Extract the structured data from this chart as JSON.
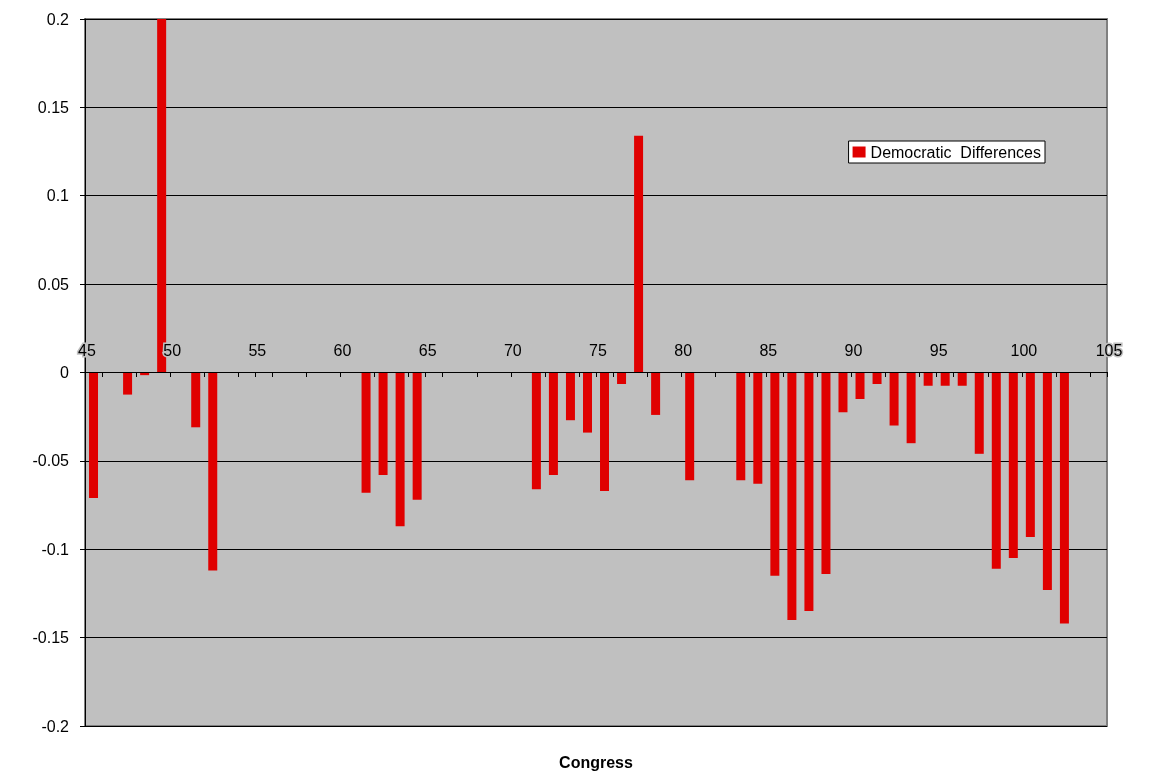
{
  "chart_data": {
    "type": "bar",
    "xlabel": "Congress",
    "x": [
      45.5,
      47.5,
      48.5,
      49.5,
      51.5,
      52.5,
      61.5,
      62.5,
      63.5,
      64.5,
      71.5,
      72.5,
      73.5,
      74.5,
      75.5,
      76.5,
      77.5,
      78.5,
      80.5,
      83.5,
      84.5,
      85.5,
      86.5,
      87.5,
      88.5,
      89.5,
      90.5,
      91.5,
      92.5,
      93.5,
      94.5,
      95.5,
      96.5,
      97.5,
      98.5,
      99.5,
      100.5,
      101.5,
      102.5
    ],
    "series": [
      {
        "name": "Democratic  Differences",
        "color": "#e00000",
        "values": [
          -0.071,
          -0.0125,
          -0.0015,
          0.2,
          -0.031,
          -0.112,
          -0.068,
          -0.058,
          -0.087,
          -0.072,
          -0.066,
          -0.058,
          -0.027,
          -0.034,
          -0.067,
          -0.0065,
          0.134,
          -0.024,
          -0.061,
          -0.061,
          -0.063,
          -0.115,
          -0.14,
          -0.135,
          -0.114,
          -0.0225,
          -0.015,
          -0.0065,
          -0.03,
          -0.04,
          -0.0075,
          -0.0075,
          -0.0075,
          -0.046,
          -0.111,
          -0.105,
          -0.093,
          -0.123,
          -0.142
        ]
      }
    ],
    "xlim": [
      45,
      105
    ],
    "xticks": [
      45,
      50,
      55,
      60,
      65,
      70,
      75,
      80,
      85,
      90,
      95,
      100,
      105
    ],
    "ylim": [
      -0.2,
      0.2
    ],
    "yticks": [
      -0.2,
      -0.15,
      -0.1,
      -0.05,
      0,
      0.05,
      0.1,
      0.15,
      0.2
    ],
    "grid": "y",
    "legend": "top right"
  }
}
